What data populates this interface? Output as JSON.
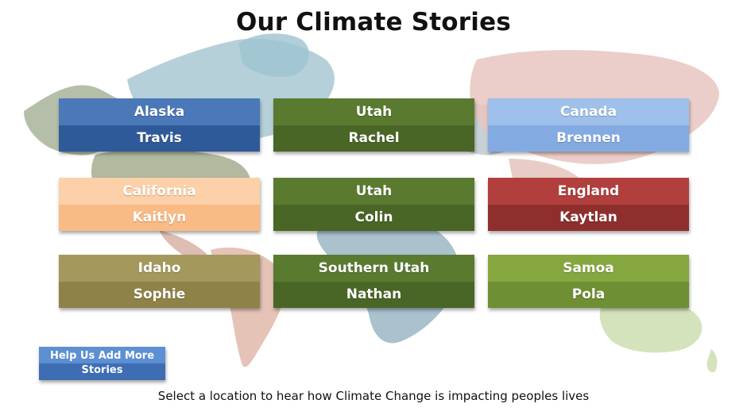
{
  "title": "Our Climate Stories",
  "stories": [
    {
      "place": "Alaska",
      "person": "Travis",
      "top_color": "#4a78b8",
      "bottom_color": "#2f5a99"
    },
    {
      "place": "Utah",
      "person": "Rachel",
      "top_color": "#5a7a30",
      "bottom_color": "#4a6627"
    },
    {
      "place": "Canada",
      "person": "Brennen",
      "top_color": "#9ec0ea",
      "bottom_color": "#83abe2"
    },
    {
      "place": "California",
      "person": "Kaitlyn",
      "top_color": "#fcd0a8",
      "bottom_color": "#f9bb85"
    },
    {
      "place": "Utah",
      "person": "Colin",
      "top_color": "#5a7a30",
      "bottom_color": "#4a6627"
    },
    {
      "place": "England",
      "person": "Kaytlan",
      "top_color": "#b13f3d",
      "bottom_color": "#8f2f2d"
    },
    {
      "place": "Idaho",
      "person": "Sophie",
      "top_color": "#a4985c",
      "bottom_color": "#8f8249"
    },
    {
      "place": "Southern Utah",
      "person": "Nathan",
      "top_color": "#5a7a30",
      "bottom_color": "#4a6627"
    },
    {
      "place": "Samoa",
      "person": "Pola",
      "top_color": "#86a640",
      "bottom_color": "#6e8f33"
    }
  ],
  "help_button": "Help Us Add More Stories",
  "footer_text": "Select a location to hear how Climate Change is impacting peoples lives"
}
